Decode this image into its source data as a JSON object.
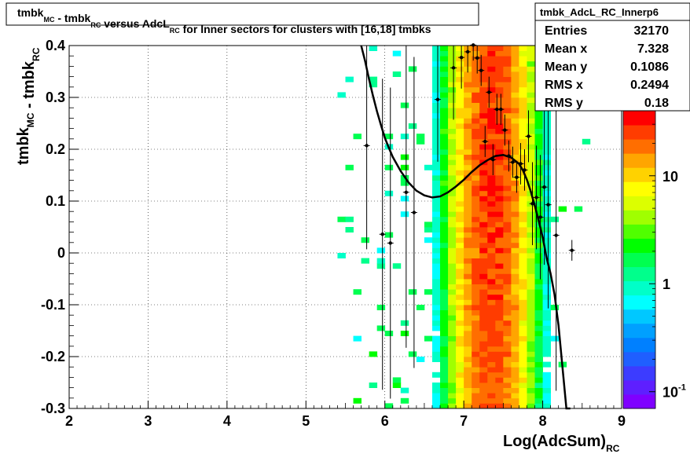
{
  "title": {
    "parts": [
      {
        "text": "tmbk",
        "sub": "MC"
      },
      {
        "text": " - tmbk",
        "sub": "RC"
      },
      {
        "text": " versus AdcL",
        "sub": "RC"
      },
      {
        "text": " for Inner sectors for clusters with [16,18] tmbks",
        "sub": ""
      }
    ]
  },
  "stats": {
    "name": "tmbk_AdcL_RC_Innerp6",
    "rows": [
      {
        "label": "Entries",
        "value": "32170"
      },
      {
        "label": "Mean x",
        "value": "7.328"
      },
      {
        "label": "Mean y",
        "value": "0.1086"
      },
      {
        "label": "RMS x",
        "value": "0.2494"
      },
      {
        "label": "RMS y",
        "value": "0.18"
      }
    ]
  },
  "chart_data": {
    "type": "heatmap",
    "xlabel": {
      "text": "Log(AdcSum)",
      "sub": "RC"
    },
    "ylabel": {
      "parts": [
        {
          "text": "tmbk",
          "sub": "MC"
        },
        {
          "text": " - tmbk",
          "sub": "RC"
        }
      ]
    },
    "xlim": [
      2,
      9
    ],
    "ylim": [
      -0.3,
      0.4
    ],
    "xticks": [
      "2",
      "3",
      "4",
      "5",
      "6",
      "7",
      "8",
      "9"
    ],
    "yticks": [
      "0.4",
      "0.3",
      "0.2",
      "0.1",
      "0",
      "-0.1",
      "-0.2",
      "-0.3"
    ],
    "grid": true,
    "z_scale": "log",
    "z_range": [
      0.07,
      40
    ],
    "colorbar_labels": [
      {
        "base": "10",
        "exp": "-1",
        "value": 0.1
      },
      {
        "base": "1",
        "exp": "",
        "value": 1
      },
      {
        "base": "10",
        "exp": "",
        "value": 10
      }
    ],
    "palette": [
      "#7f00ff",
      "#5e1fff",
      "#3c3cff",
      "#1f5fff",
      "#0080ff",
      "#00a0ff",
      "#00c8ff",
      "#00ffff",
      "#00ffc8",
      "#00ff8c",
      "#00ff50",
      "#00ff00",
      "#50ff00",
      "#a0ff00",
      "#dcff00",
      "#ffff00",
      "#ffd200",
      "#ffa500",
      "#ff6e00",
      "#ff3c00",
      "#ff0000"
    ],
    "profile": {
      "x": [
        5.77,
        5.97,
        6.07,
        6.27,
        6.37,
        6.67,
        6.87,
        6.97,
        7.05,
        7.12,
        7.17,
        7.22,
        7.27,
        7.32,
        7.37,
        7.42,
        7.47,
        7.52,
        7.57,
        7.62,
        7.67,
        7.72,
        7.77,
        7.82,
        7.87,
        7.92,
        7.97,
        8.02,
        8.07,
        8.17,
        8.37
      ],
      "y": [
        0.207,
        0.036,
        0.019,
        0.117,
        0.078,
        0.296,
        0.357,
        0.377,
        0.388,
        0.401,
        0.376,
        0.352,
        0.215,
        0.31,
        0.18,
        0.277,
        0.277,
        0.237,
        0.187,
        0.175,
        0.146,
        0.172,
        0.16,
        0.225,
        0.095,
        0.107,
        0.069,
        0.127,
        0.093,
        0.034,
        0.005
      ],
      "err": [
        0.2,
        0.3,
        0.3,
        0.3,
        0.3,
        0.12,
        0.1,
        0.06,
        0.04,
        0.03,
        0.03,
        0.03,
        0.03,
        0.03,
        0.03,
        0.03,
        0.03,
        0.03,
        0.03,
        0.03,
        0.03,
        0.04,
        0.04,
        0.05,
        0.08,
        0.1,
        0.12,
        0.15,
        0.2,
        0.3,
        0.02
      ]
    },
    "fit": {
      "x": [
        5.7,
        5.75,
        5.8,
        5.85,
        5.9,
        5.95,
        6.0,
        6.05,
        6.1,
        6.2,
        6.3,
        6.4,
        6.5,
        6.6,
        6.7,
        6.8,
        6.9,
        7.0,
        7.1,
        7.2,
        7.3,
        7.4,
        7.5,
        7.6,
        7.7,
        7.75,
        7.8,
        7.85,
        7.9,
        7.95,
        8.0,
        8.05,
        8.1,
        8.15,
        8.2,
        8.25,
        8.3,
        8.35
      ],
      "y": [
        0.4,
        0.37,
        0.335,
        0.303,
        0.273,
        0.247,
        0.222,
        0.203,
        0.185,
        0.158,
        0.136,
        0.12,
        0.111,
        0.107,
        0.109,
        0.117,
        0.128,
        0.141,
        0.156,
        0.169,
        0.179,
        0.187,
        0.189,
        0.184,
        0.172,
        0.159,
        0.141,
        0.118,
        0.091,
        0.062,
        0.03,
        -0.01,
        -0.04,
        -0.08,
        -0.14,
        -0.22,
        -0.3,
        -0.37
      ]
    }
  }
}
